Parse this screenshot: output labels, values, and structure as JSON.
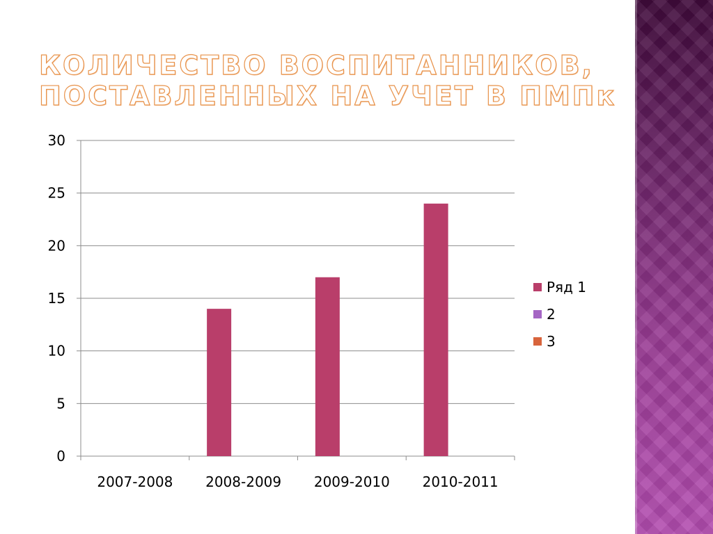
{
  "title_lines": [
    "КОЛИЧЕСТВО  ВОСПИТАННИКОВ,",
    "ПОСТАВЛЕННЫХ НА УЧЕТ  В ПМПк"
  ],
  "chart_data": {
    "type": "bar",
    "title": "КОЛИЧЕСТВО  ВОСПИТАННИКОВ, ПОСТАВЛЕННЫХ НА УЧЕТ  В ПМПк",
    "categories": [
      "2007-2008",
      "2008-2009",
      "2009-2010",
      "2010-2011"
    ],
    "series": [
      {
        "name": "Ряд 1",
        "values": [
          0,
          14,
          17,
          24
        ],
        "color": "#b93e6a"
      },
      {
        "name": "2",
        "values": [
          0,
          0,
          0,
          0
        ],
        "color": "#a566c4"
      },
      {
        "name": "3",
        "values": [
          0,
          0,
          0,
          0
        ],
        "color": "#d8643c"
      }
    ],
    "ylim": [
      0,
      30
    ],
    "yticks": [
      0,
      5,
      10,
      15,
      20,
      25,
      30
    ],
    "xlabel": "",
    "ylabel": "",
    "grid": true,
    "legend_position": "right"
  }
}
